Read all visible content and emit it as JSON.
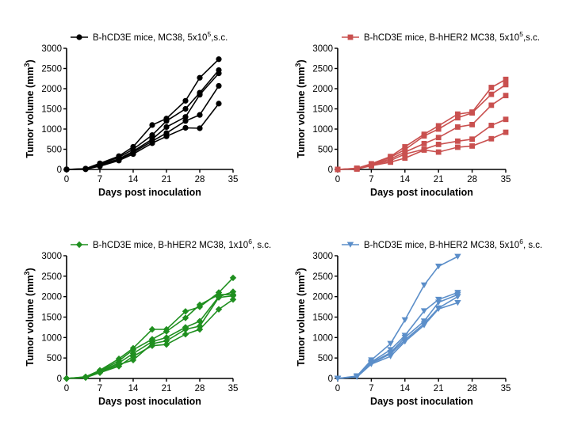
{
  "chart_data": [
    {
      "type": "line",
      "legend": {
        "label_pre": "B-hCD3E mice, MC38, 5x10",
        "sup": "5",
        "label_post": ",s.c.",
        "placement": "top"
      },
      "color": "#000000",
      "marker": "circle",
      "ylabel": "Tumor volume (mm",
      "ylabel_sup": "3",
      "ylabel_end": ")",
      "xlabel": "Days post inoculation",
      "xlim": [
        0,
        35
      ],
      "ylim": [
        0,
        3000
      ],
      "xticks": [
        0,
        7,
        14,
        21,
        28,
        35
      ],
      "yticks": [
        0,
        500,
        1000,
        1500,
        2000,
        2500,
        3000
      ],
      "x": [
        0,
        4,
        7,
        11,
        14,
        18,
        21,
        25,
        28,
        32
      ],
      "series": [
        {
          "values": [
            0,
            20,
            150,
            330,
            560,
            1100,
            1260,
            1700,
            2270,
            2730
          ]
        },
        {
          "values": [
            0,
            15,
            130,
            300,
            500,
            850,
            1200,
            1500,
            1900,
            2460
          ]
        },
        {
          "values": [
            0,
            10,
            110,
            260,
            450,
            750,
            1050,
            1300,
            1850,
            2380
          ]
        },
        {
          "values": [
            0,
            8,
            90,
            240,
            420,
            700,
            900,
            1200,
            1350,
            2070
          ]
        },
        {
          "values": [
            0,
            5,
            80,
            220,
            380,
            650,
            820,
            1030,
            1020,
            1630
          ]
        }
      ]
    },
    {
      "type": "line",
      "legend": {
        "label_pre": "B-hCD3E mice, B-hHER2 MC38, 5x10",
        "sup": "5",
        "label_post": ",s.c.",
        "placement": "top"
      },
      "color": "#c9504f",
      "marker": "square",
      "ylabel": "Tumor volume (mm",
      "ylabel_sup": "3",
      "ylabel_end": ")",
      "xlabel": "Days post inoculation",
      "xlim": [
        0,
        35
      ],
      "ylim": [
        0,
        3000
      ],
      "xticks": [
        0,
        7,
        14,
        21,
        28,
        35
      ],
      "yticks": [
        0,
        500,
        1000,
        1500,
        2000,
        2500,
        3000
      ],
      "x": [
        0,
        4,
        7,
        11,
        14,
        18,
        21,
        25,
        28,
        32,
        35
      ],
      "series": [
        {
          "values": [
            0,
            30,
            140,
            320,
            560,
            870,
            1080,
            1370,
            1420,
            2030,
            2230
          ]
        },
        {
          "values": [
            0,
            25,
            120,
            300,
            490,
            830,
            1000,
            1280,
            1400,
            1860,
            2100
          ]
        },
        {
          "values": [
            0,
            20,
            110,
            260,
            430,
            640,
            790,
            1050,
            1110,
            1590,
            1830
          ]
        },
        {
          "values": [
            0,
            15,
            100,
            220,
            380,
            500,
            620,
            700,
            750,
            1090,
            1240
          ]
        },
        {
          "values": [
            0,
            10,
            90,
            180,
            280,
            480,
            430,
            550,
            580,
            760,
            920
          ]
        }
      ]
    },
    {
      "type": "line",
      "legend": {
        "label_pre": "B-hCD3E mice, B-hHER2 MC38, 1x10",
        "sup": "6",
        "label_post": ", s.c.",
        "placement": "top"
      },
      "color": "#1f8f1f",
      "marker": "diamond",
      "ylabel": "Tumor volume (mm",
      "ylabel_sup": "3",
      "ylabel_end": ")",
      "xlabel": "Days post inoculation",
      "xlim": [
        0,
        35
      ],
      "ylim": [
        0,
        3000
      ],
      "xticks": [
        0,
        7,
        14,
        21,
        28,
        35
      ],
      "yticks": [
        0,
        500,
        1000,
        1500,
        2000,
        2500,
        3000
      ],
      "x": [
        0,
        4,
        7,
        11,
        14,
        18,
        21,
        25,
        28,
        32,
        35
      ],
      "series": [
        {
          "values": [
            0,
            40,
            200,
            480,
            740,
            1200,
            1200,
            1640,
            1750,
            2100,
            2460
          ]
        },
        {
          "values": [
            0,
            35,
            180,
            430,
            700,
            960,
            1150,
            1480,
            1800,
            2050,
            2050
          ]
        },
        {
          "values": [
            0,
            30,
            160,
            380,
            610,
            900,
            1000,
            1250,
            1400,
            2000,
            2120
          ]
        },
        {
          "values": [
            0,
            25,
            150,
            340,
            450,
            850,
            920,
            1200,
            1280,
            1980,
            2020
          ]
        },
        {
          "values": [
            0,
            20,
            140,
            300,
            540,
            800,
            830,
            1080,
            1200,
            1690,
            1930
          ]
        }
      ]
    },
    {
      "type": "line",
      "legend": {
        "label_pre": "B-hCD3E mice, B-hHER2 MC38, 5x10",
        "sup": "6",
        "label_post": ", s.c.",
        "placement": "top"
      },
      "color": "#5b8ec9",
      "marker": "triangle-down",
      "ylabel": "Tumor volume (mm",
      "ylabel_sup": "3",
      "ylabel_end": ")",
      "xlabel": "Days post inoculation",
      "xlim": [
        0,
        35
      ],
      "ylim": [
        0,
        3000
      ],
      "xticks": [
        0,
        7,
        14,
        21,
        28,
        35
      ],
      "yticks": [
        0,
        500,
        1000,
        1500,
        2000,
        2500,
        3000
      ],
      "x": [
        0,
        4,
        7,
        11,
        14,
        18,
        21,
        25
      ],
      "series": [
        {
          "values": [
            0,
            60,
            450,
            850,
            1430,
            2280,
            2740,
            2980
          ]
        },
        {
          "values": [
            0,
            50,
            400,
            700,
            1050,
            1650,
            1930,
            2100
          ]
        },
        {
          "values": [
            0,
            45,
            380,
            630,
            1000,
            1400,
            1860,
            2050
          ]
        },
        {
          "values": [
            0,
            40,
            370,
            600,
            940,
            1340,
            1720,
            2000
          ]
        },
        {
          "values": [
            0,
            35,
            350,
            540,
            900,
            1300,
            1700,
            1850
          ]
        }
      ]
    }
  ]
}
